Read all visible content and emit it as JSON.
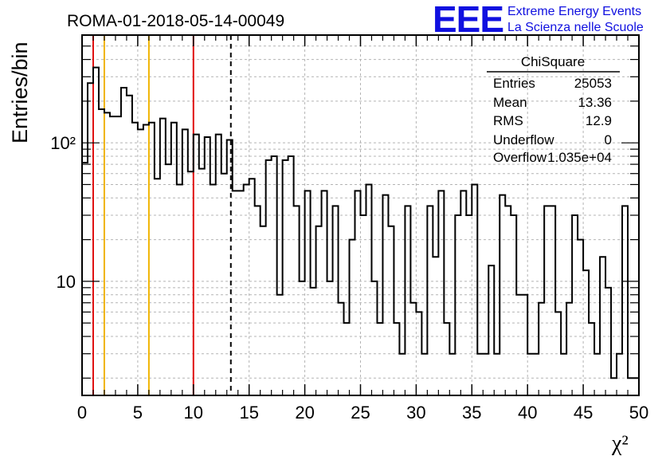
{
  "header": {
    "title": "ROMA-01-2018-05-14-00049",
    "logo_text": "EEE",
    "logo_line1": "Extreme Energy Events",
    "logo_line2": "La Scienza nelle Scuole"
  },
  "stats_box": {
    "title": "ChiSquare",
    "rows": [
      {
        "label": "Entries",
        "value": "25053"
      },
      {
        "label": "Mean",
        "value": "13.36"
      },
      {
        "label": "RMS",
        "value": "12.9"
      },
      {
        "label": "Underflow",
        "value": "0"
      },
      {
        "label": "Overflow",
        "value": "1.035e+04"
      }
    ]
  },
  "colors": {
    "histogram": "#000000",
    "red_lines": "#e01010",
    "orange_lines": "#f0b400",
    "mean_line": "#000000",
    "grid": "#b4b4b4"
  },
  "chart_data": {
    "type": "histogram",
    "title": "ROMA-01-2018-05-14-00049",
    "xlabel": "χ²",
    "ylabel": "Entries/bin",
    "xlim": [
      0,
      50
    ],
    "ylim": [
      1.5,
      600
    ],
    "yscale": "log",
    "grid": true,
    "bin_width": 0.5,
    "x_ticks": [
      0,
      5,
      10,
      15,
      20,
      25,
      30,
      35,
      40,
      45,
      50
    ],
    "y_ticks": [
      {
        "value": 10,
        "label": "10"
      },
      {
        "value": 100,
        "label": "10²"
      }
    ],
    "counts": [
      72,
      270,
      350,
      175,
      165,
      155,
      155,
      250,
      220,
      140,
      125,
      135,
      140,
      55,
      150,
      70,
      140,
      50,
      125,
      62,
      115,
      65,
      110,
      50,
      115,
      60,
      105,
      45,
      45,
      50,
      55,
      35,
      25,
      75,
      80,
      8,
      75,
      80,
      35,
      10,
      45,
      9,
      25,
      45,
      10,
      35,
      7,
      5,
      20,
      45,
      30,
      50,
      10,
      5,
      42,
      25,
      5,
      3,
      35,
      7,
      6,
      3,
      35,
      15,
      45,
      5,
      3,
      30,
      45,
      30,
      50,
      3,
      3,
      13,
      3,
      42,
      35,
      30,
      8,
      8,
      3,
      3,
      7,
      35,
      35,
      6,
      3,
      7,
      30,
      20,
      12,
      5,
      3,
      15,
      9,
      2,
      3,
      35,
      2,
      2
    ],
    "vertical_lines": [
      {
        "x": 1.0,
        "color": "red",
        "style": "solid"
      },
      {
        "x": 2.0,
        "color": "orange",
        "style": "solid"
      },
      {
        "x": 6.0,
        "color": "orange",
        "style": "solid"
      },
      {
        "x": 10.0,
        "color": "red",
        "style": "solid"
      },
      {
        "x": 13.36,
        "color": "black",
        "style": "dashed"
      }
    ]
  }
}
